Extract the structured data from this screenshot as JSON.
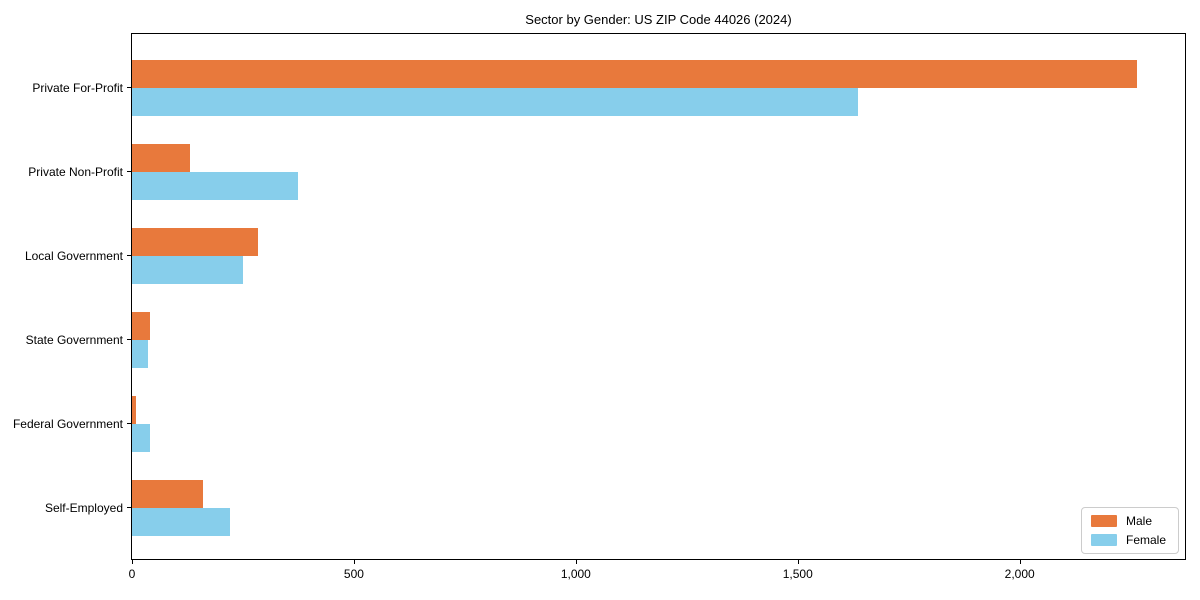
{
  "chart_data": {
    "type": "bar",
    "orientation": "horizontal",
    "title": "Sector by Gender: US ZIP Code 44026 (2024)",
    "categories": [
      "Private For-Profit",
      "Private Non-Profit",
      "Local Government",
      "State Government",
      "Federal Government",
      "Self-Employed"
    ],
    "series": [
      {
        "name": "Male",
        "color": "#e8793c",
        "values": [
          2265,
          130,
          285,
          40,
          8,
          160
        ]
      },
      {
        "name": "Female",
        "color": "#87ceeb",
        "values": [
          1635,
          375,
          250,
          35,
          40,
          220
        ]
      }
    ],
    "xlabel": "",
    "ylabel": "",
    "xlim": [
      0,
      2377
    ],
    "xticks": {
      "values": [
        0,
        500,
        1000,
        1500,
        2000
      ],
      "labels": [
        "0",
        "500",
        "1,000",
        "1,500",
        "2,000"
      ]
    },
    "grid": false,
    "legend_position": "lower right",
    "colors": {
      "male": "#e8793c",
      "female": "#87ceeb",
      "spine": "#000000",
      "legend_border": "#cccccc",
      "background": "#ffffff"
    }
  }
}
